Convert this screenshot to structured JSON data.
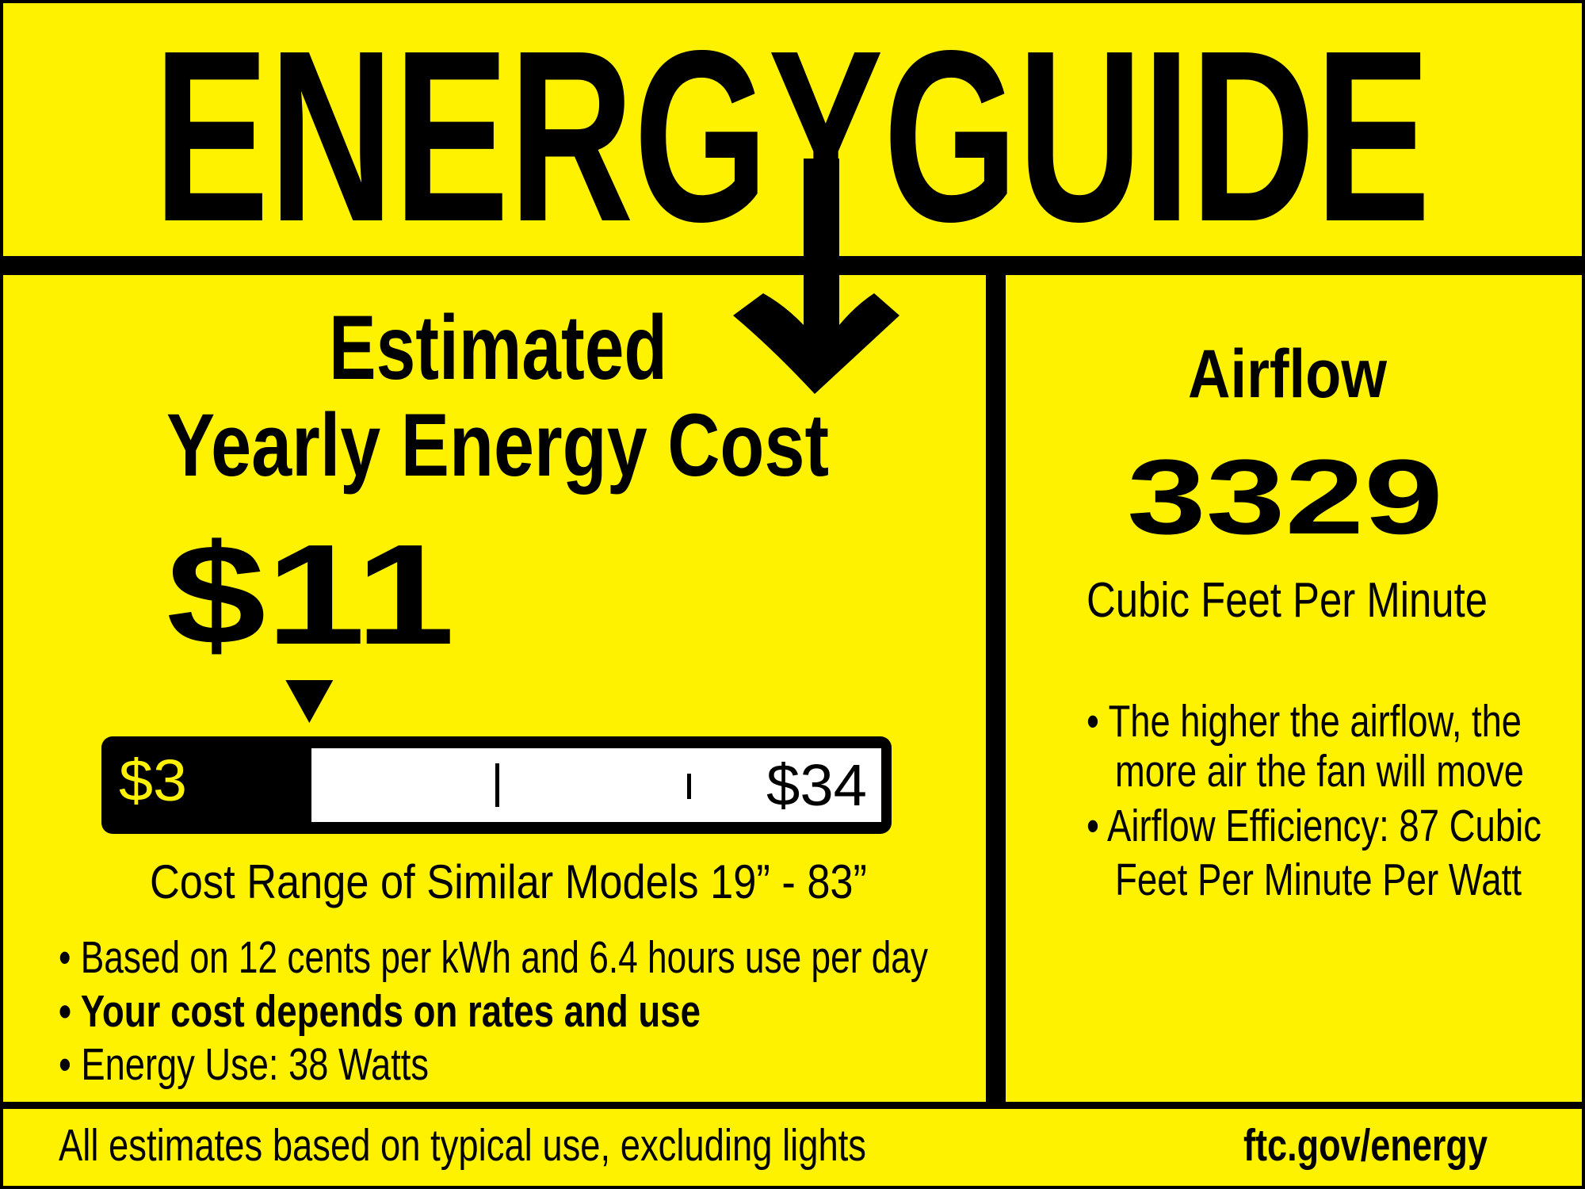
{
  "colors": {
    "background": "#fff200",
    "ink": "#000000",
    "bar_fill": "#ffffff"
  },
  "header": {
    "title": "ENERGYGUIDE",
    "arrow_icon": "down-arrow"
  },
  "cost": {
    "heading_line1": "Estimated",
    "heading_line2": "Yearly Energy Cost",
    "value": "$11",
    "value_number": 11,
    "range_min_label": "$3",
    "range_max_label": "$34",
    "range_min": 3,
    "range_max": 34,
    "range_caption": "Cost Range of Similar Models 19” - 83”",
    "bullets": [
      "• Based on 12 cents per kWh and 6.4 hours use per day",
      "• Your cost depends on rates and use",
      "• Energy Use: 38 Watts"
    ]
  },
  "airflow": {
    "heading": "Airflow",
    "value": "3329",
    "unit": "Cubic Feet Per Minute",
    "bullets": [
      "• The higher the airflow, the",
      "more air the fan will move",
      "• Airflow Efficiency: 87 Cubic",
      "Feet Per Minute Per Watt"
    ]
  },
  "footer": {
    "note": "All estimates based on typical use, excluding lights",
    "link": "ftc.gov/energy"
  }
}
